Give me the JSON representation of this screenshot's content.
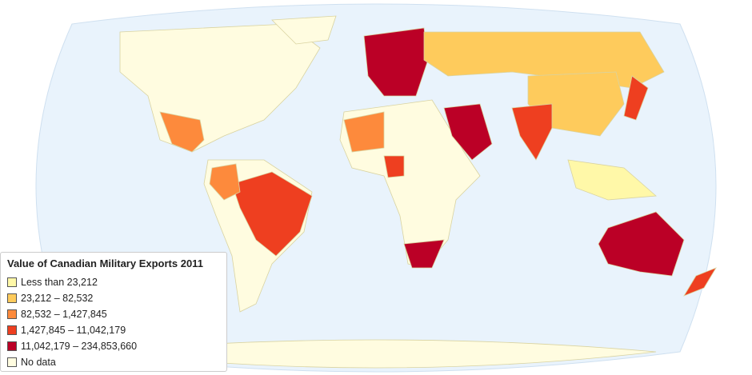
{
  "legend": {
    "title": "Value of Canadian Military Exports 2011",
    "items": [
      {
        "label": "Less than 23,212",
        "color": "#fff8a8"
      },
      {
        "label": "23,212 – 82,532",
        "color": "#fecb5c"
      },
      {
        "label": "82,532 – 1,427,845",
        "color": "#fd8a3c"
      },
      {
        "label": "1,427,845 – 11,042,179",
        "color": "#ee3f20"
      },
      {
        "label": "11,042,179 – 234,853,660",
        "color": "#bb0026"
      },
      {
        "label": "No data",
        "color": "#fffce0"
      }
    ]
  }
}
